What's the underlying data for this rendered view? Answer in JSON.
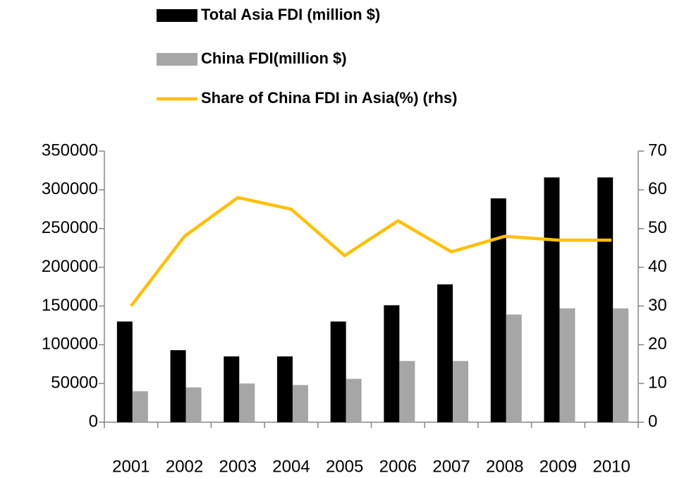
{
  "chart_data": {
    "type": "bar-line",
    "categories": [
      "2001",
      "2002",
      "2003",
      "2004",
      "2005",
      "2006",
      "2007",
      "2008",
      "2009",
      "2010"
    ],
    "series": [
      {
        "name": "Total Asia FDI (million $)",
        "type": "bar",
        "color": "#000000",
        "values": [
          130000,
          93000,
          85000,
          85000,
          130000,
          151000,
          178000,
          289000,
          316000,
          316000
        ]
      },
      {
        "name": "China FDI(million $)",
        "type": "bar",
        "color": "#a6a6a6",
        "values": [
          40000,
          45000,
          50000,
          48000,
          56000,
          79000,
          79000,
          139000,
          147000,
          147000
        ]
      },
      {
        "name": "Share of China FDI in Asia(%) (rhs)",
        "type": "line",
        "axis": "y2",
        "color": "#ffc000",
        "values": [
          30,
          48,
          58,
          55,
          43,
          52,
          44,
          48,
          47,
          47
        ]
      }
    ],
    "ylim": [
      0,
      350000
    ],
    "yticks": [
      0,
      50000,
      100000,
      150000,
      200000,
      250000,
      300000,
      350000
    ],
    "y2lim": [
      0,
      70
    ],
    "y2ticks": [
      0,
      10,
      20,
      30,
      40,
      50,
      60,
      70
    ],
    "legend": "top",
    "grid": false
  }
}
